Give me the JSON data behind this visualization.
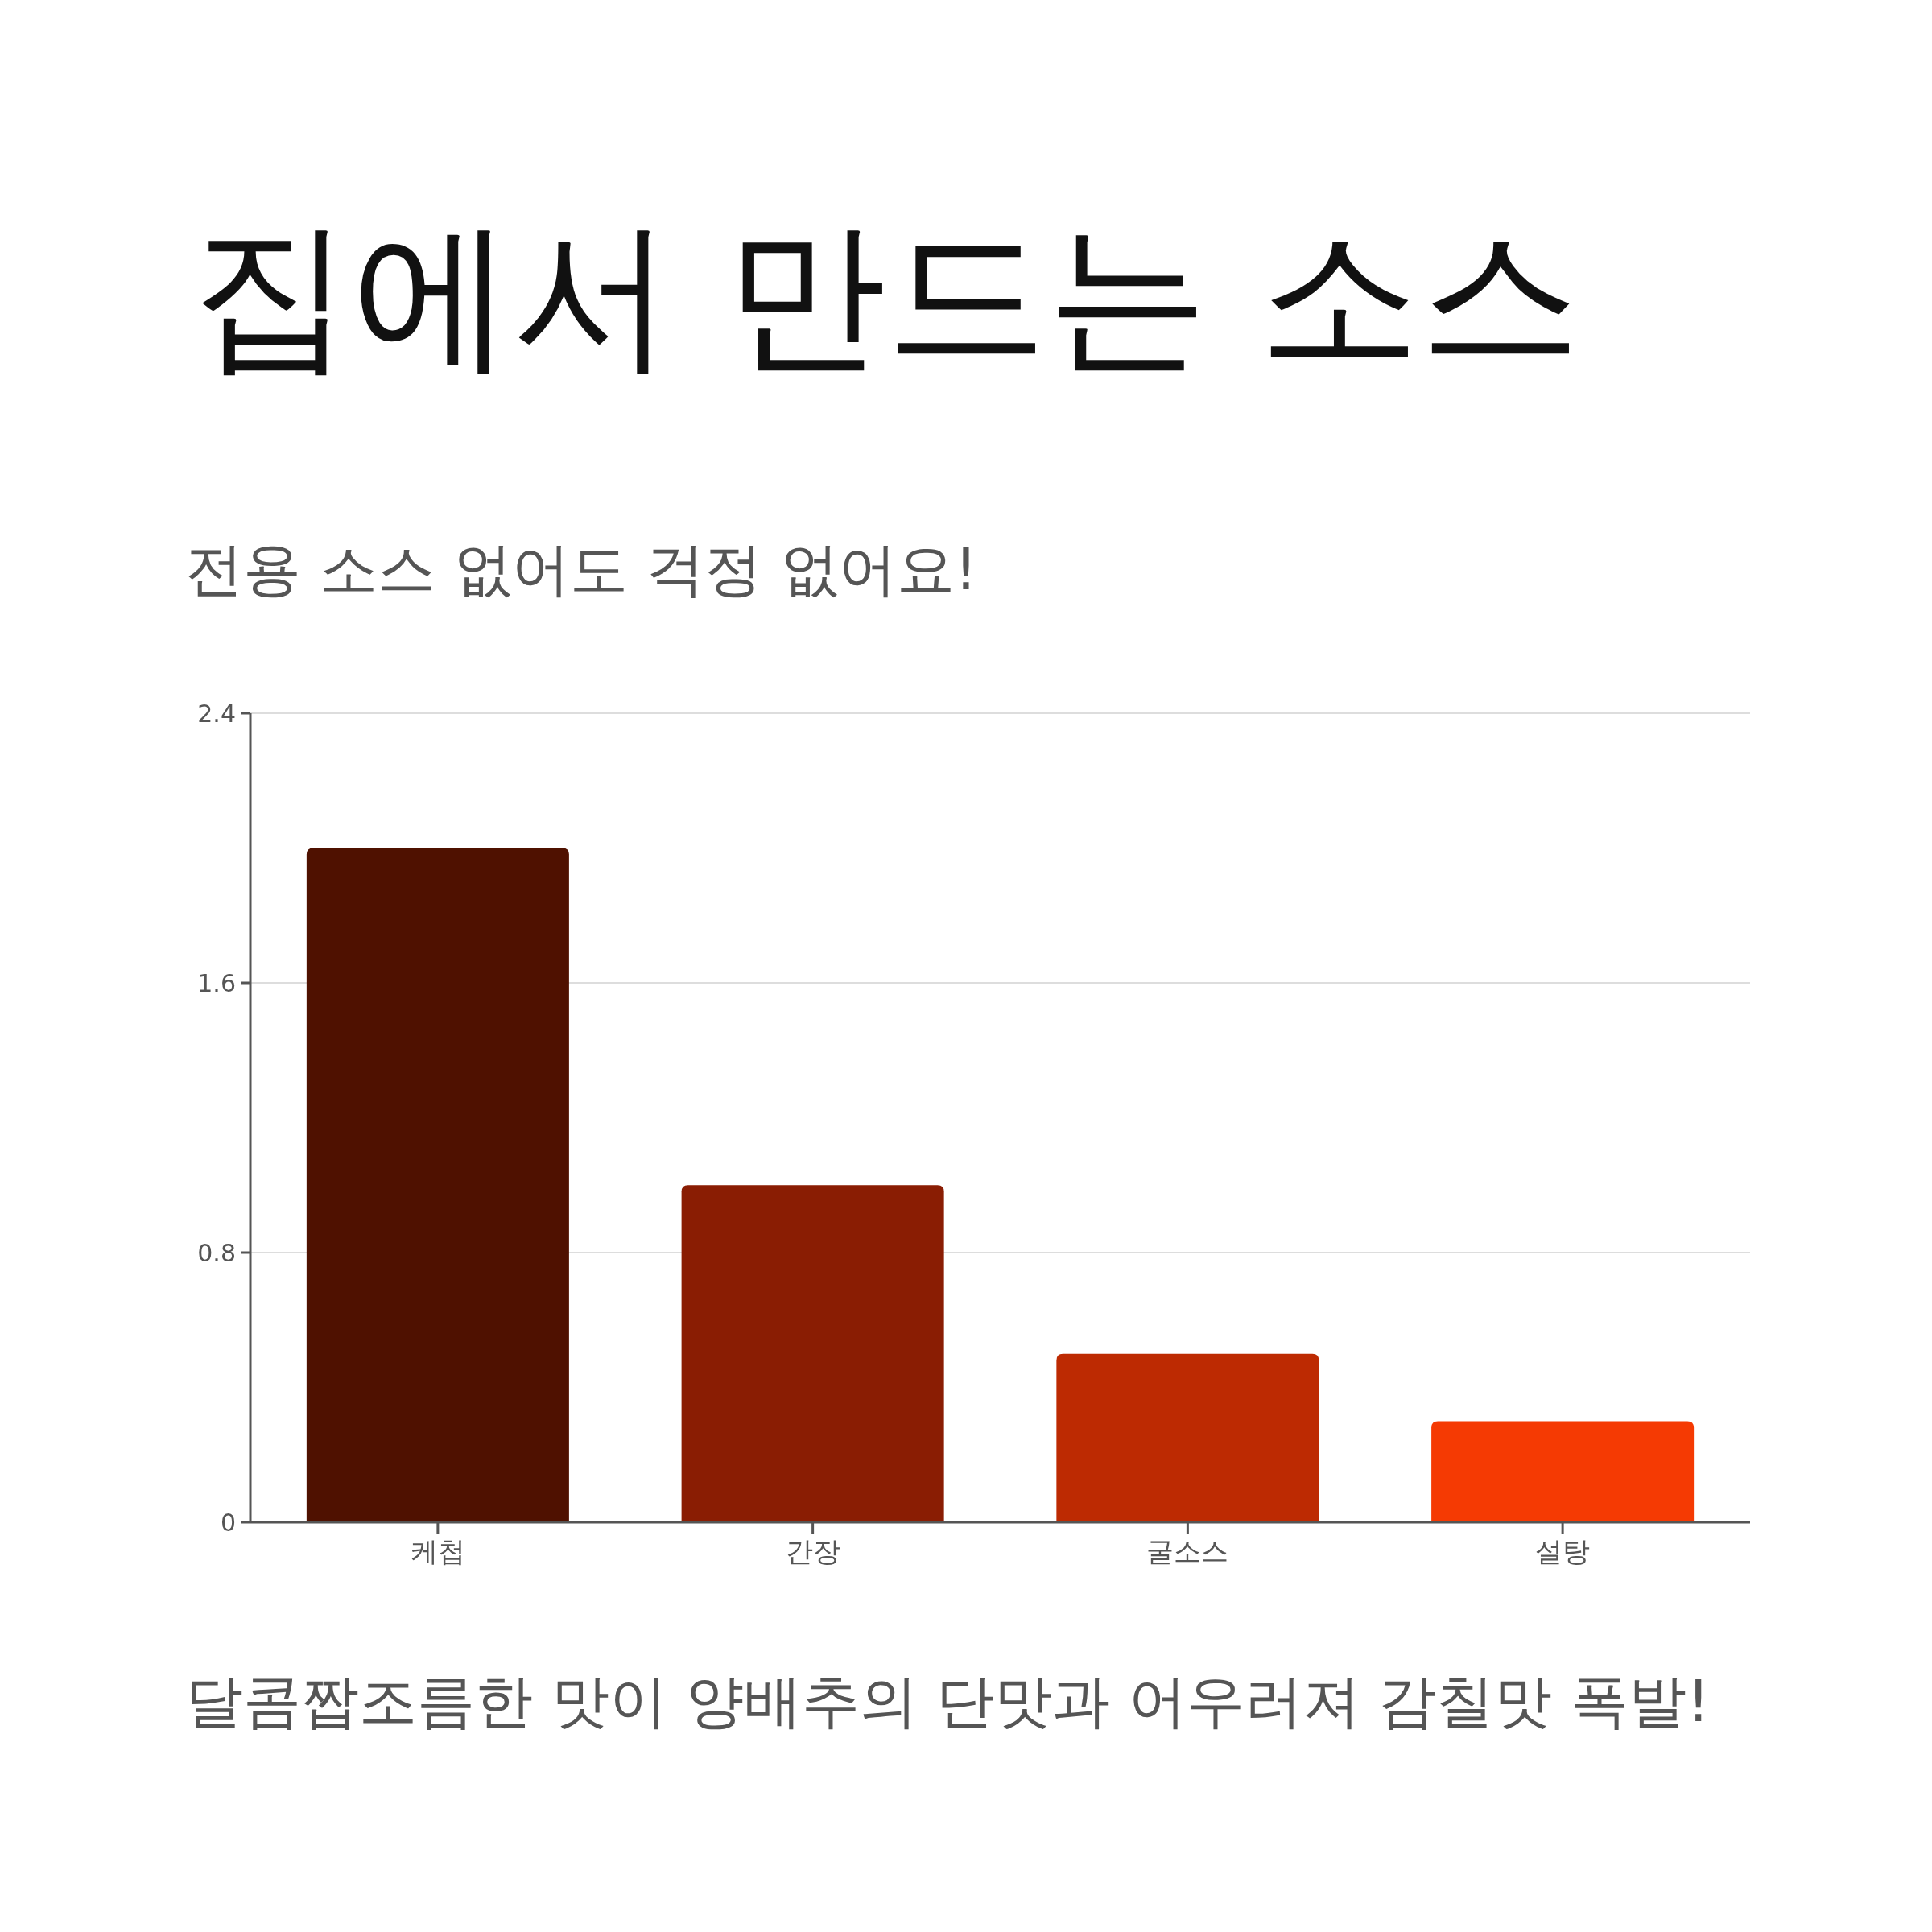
{
  "chart_data": {
    "type": "bar",
    "title": "집에서 만드는 소스",
    "subtitle": "전용 소스 없어도 걱정 없어요!",
    "categories": [
      "케첩",
      "간장",
      "굴소스",
      "설탕"
    ],
    "values": [
      2.0,
      1.0,
      0.5,
      0.3
    ],
    "colors": [
      "#4f1100",
      "#8a1d03",
      "#bd2a02",
      "#f53a03"
    ],
    "ylim": [
      0,
      2.4
    ],
    "yticks": [
      0,
      0.8,
      1.6,
      2.4
    ],
    "grid": "y",
    "annotations": [
      "달콤짭조름한 맛이 양배추의 단맛과 어우러져 감칠맛 폭발!"
    ]
  }
}
